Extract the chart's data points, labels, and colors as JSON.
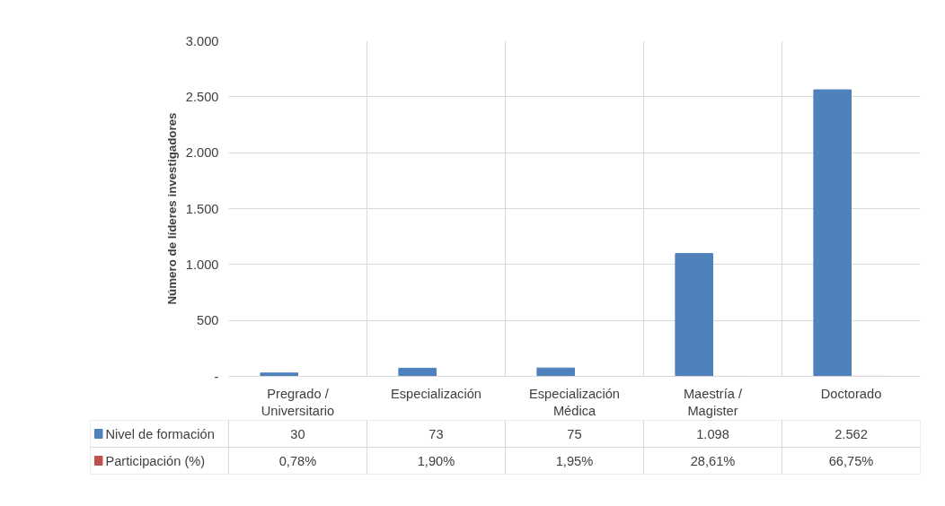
{
  "chart_data": {
    "type": "bar",
    "ylabel": "Número de líderes investigadores",
    "categories": [
      "Pregrado / Universitario",
      "Especialización",
      "Especialización Médica",
      "Maestría / Magister",
      "Doctorado"
    ],
    "series": [
      {
        "name": "Nivel de formación",
        "color": "#4f81bd",
        "values": [
          30,
          73,
          75,
          1098,
          2562
        ],
        "value_labels": [
          "30",
          "73",
          "75",
          "1.098",
          "2.562"
        ]
      },
      {
        "name": "Participación (%)",
        "color": "#c0504d",
        "values": [
          0.0078,
          0.019,
          0.0195,
          0.2861,
          0.6675
        ],
        "value_labels": [
          "0,78%",
          "1,90%",
          "1,95%",
          "28,61%",
          "66,75%"
        ]
      }
    ],
    "ylim": [
      0,
      3000
    ],
    "yticks": [
      {
        "value": 0,
        "label": "-"
      },
      500,
      {
        "value": 1000,
        "label": "1.000"
      },
      {
        "value": 1500,
        "label": "1.500"
      },
      {
        "value": 2000,
        "label": "2.000"
      },
      {
        "value": 2500,
        "label": "2.500"
      },
      {
        "value": 3000,
        "label": "3.000"
      }
    ],
    "grid": true,
    "legend": "bottom"
  }
}
